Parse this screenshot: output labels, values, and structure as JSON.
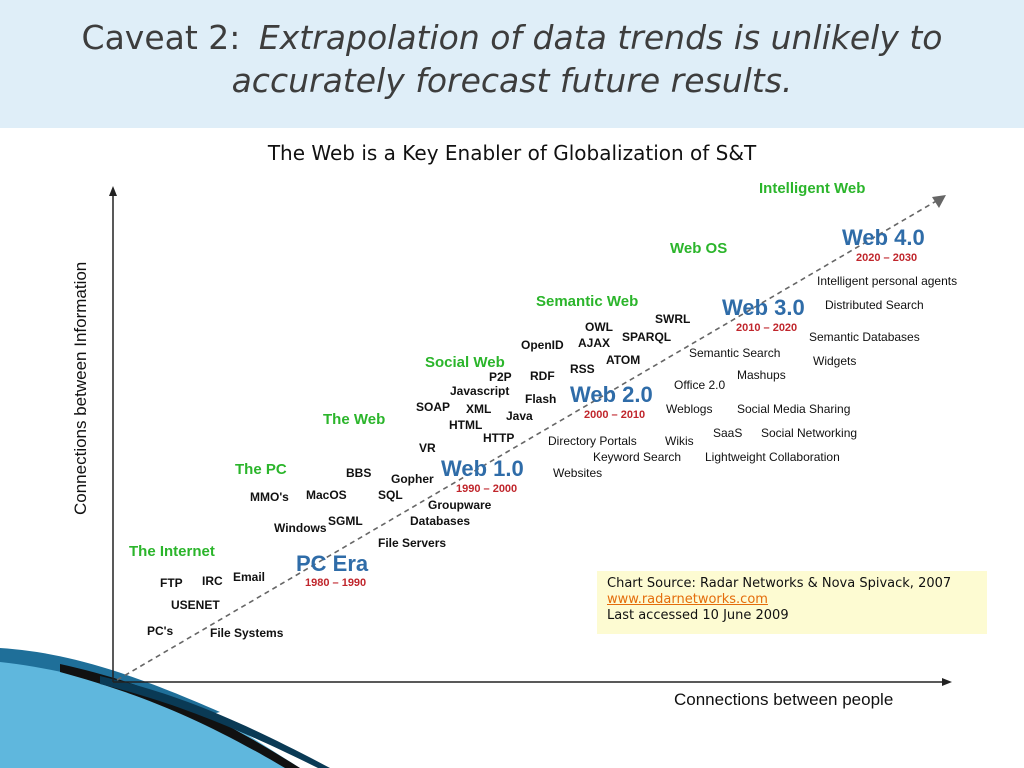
{
  "title": {
    "prefix": "Caveat 2:",
    "line1": "Extrapolation of data trends is unlikely to",
    "line2": "accurately forecast future results."
  },
  "subtitle": "The Web is a Key Enabler of Globalization of S&T",
  "axes": {
    "y_label": "Connections between Information",
    "x_label": "Connections between people"
  },
  "colors": {
    "era": "#2f6ca8",
    "era_years": "#c0262c",
    "phase": "#2bb52b",
    "tech": "#111111",
    "trend": "#666666"
  },
  "eras": [
    {
      "id": "pc-era",
      "label": "PC Era",
      "years": "1980 – 1990"
    },
    {
      "id": "web-1",
      "label": "Web 1.0",
      "years": "1990 – 2000"
    },
    {
      "id": "web-2",
      "label": "Web 2.0",
      "years": "2000 – 2010"
    },
    {
      "id": "web-3",
      "label": "Web 3.0",
      "years": "2010 – 2020"
    },
    {
      "id": "web-4",
      "label": "Web 4.0",
      "years": "2020 – 2030"
    }
  ],
  "phases": [
    "The Internet",
    "The PC",
    "The Web",
    "Social Web",
    "Semantic Web",
    "Web OS",
    "Intelligent Web"
  ],
  "technologies": [
    "FTP",
    "IRC",
    "Email",
    "USENET",
    "PC's",
    "File Systems",
    "MMO's",
    "MacOS",
    "BBS",
    "Windows",
    "SGML",
    "SQL",
    "Gopher",
    "Groupware",
    "Databases",
    "File Servers",
    "VR",
    "SOAP",
    "XML",
    "HTML",
    "HTTP",
    "Javascript",
    "P2P",
    "Java",
    "Flash",
    "RDF",
    "OpenID",
    "AJAX",
    "OWL",
    "RSS",
    "SPARQL",
    "ATOM",
    "SWRL",
    "Directory Portals",
    "Keyword Search",
    "Websites",
    "Wikis",
    "Weblogs",
    "Office 2.0",
    "SaaS",
    "Semantic Search",
    "Mashups",
    "Social Media Sharing",
    "Social Networking",
    "Lightweight Collaboration",
    "Intelligent personal agents",
    "Distributed Search",
    "Semantic Databases",
    "Widgets"
  ],
  "source": {
    "text": "Chart Source:  Radar Networks & Nova Spivack, 2007",
    "link": "www.radarnetworks.com",
    "accessed": "Last accessed 10 June 2009"
  }
}
